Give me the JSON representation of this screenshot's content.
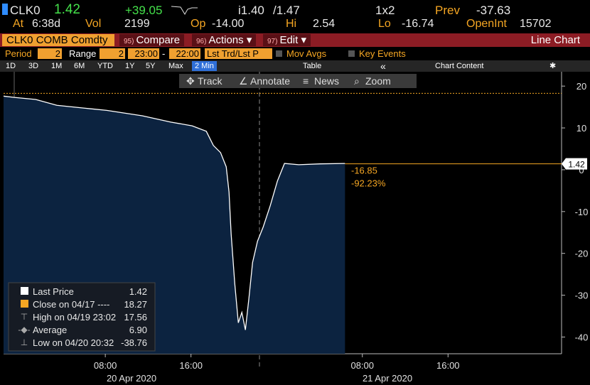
{
  "quote": {
    "ticker": "CLK0",
    "last": "1.42",
    "change": "+39.05",
    "bid": "i1.40",
    "ask": "/1.47",
    "size": "1x2",
    "prev_label": "Prev",
    "prev": "-37.63",
    "at_label": "At",
    "time": "6:38d",
    "vol_label": "Vol",
    "vol": "2199",
    "op_label": "Op",
    "op": "-14.00",
    "hi_label": "Hi",
    "hi": "2.54",
    "lo_label": "Lo",
    "lo": "-16.74",
    "oi_label": "OpenInt",
    "oi": "15702"
  },
  "menu": {
    "security": "CLK0 COMB Comdty",
    "buttons": [
      {
        "num": "95)",
        "label": "Compare"
      },
      {
        "num": "96)",
        "label": "Actions"
      },
      {
        "num": "97)",
        "label": "Edit"
      }
    ],
    "title": "Line Chart"
  },
  "settings": {
    "period_label": "Period",
    "period": "2",
    "range_label": "Range",
    "range": "2",
    "from": "23:00",
    "dash": "-",
    "to": "22:00",
    "mode": "Lst Trd/Lst P",
    "mov": "Mov Avgs",
    "key": "Key Events"
  },
  "ranges": {
    "items": [
      "1D",
      "3D",
      "1M",
      "6M",
      "YTD",
      "1Y",
      "5Y",
      "Max",
      "2 Min"
    ],
    "table": "Table",
    "content": "Chart Content"
  },
  "tools": [
    "Track",
    "Annotate",
    "News",
    "Zoom"
  ],
  "chart_data": {
    "type": "line",
    "color": "#ffffff",
    "fill": "#0c2340",
    "x": [
      -1.5,
      -0.5,
      1.49,
      3.48,
      6.14,
      8.13,
      11.45,
      14.11,
      16.1,
      17.43,
      18.09,
      18.76,
      19.29,
      19.55,
      19.75,
      20.09,
      20.42,
      20.75,
      21.08,
      21.41,
      21.75,
      22.21,
      22.74,
      23.4,
      24.07,
      24.73,
      26.06,
      28.05,
      30.38
    ],
    "values": [
      17.6,
      17.3,
      16.8,
      15.4,
      14.7,
      14.2,
      12.9,
      11.4,
      10.5,
      9.2,
      5.8,
      4.1,
      0.7,
      -5.3,
      -15.4,
      -27.3,
      -36.6,
      -34.1,
      -38.3,
      -30.7,
      -22.2,
      -17.1,
      -13.7,
      -8.6,
      -2.7,
      1.5,
      1.2,
      1.4,
      1.5
    ],
    "xlim": [
      -1.5,
      50.6
    ],
    "ylim": [
      -44,
      23.6
    ],
    "xticks": [
      {
        "value": 8,
        "label": "08:00"
      },
      {
        "value": 16,
        "label": "16:00"
      },
      {
        "value": 32,
        "label": "08:00"
      },
      {
        "value": 40,
        "label": "16:00"
      }
    ],
    "dates": [
      "20 Apr 2020",
      "21 Apr 2020"
    ],
    "yticks": [
      20,
      10,
      0,
      -10,
      -20,
      -30,
      -40
    ],
    "annotations": [
      "-16.85",
      "-92.23%"
    ],
    "legend": [
      {
        "name": "Last Price",
        "value": 1.42
      },
      {
        "name": "Close on 04/17 ----",
        "value": 18.27
      },
      {
        "name": "High on 04/19 23:02",
        "value": 17.56
      },
      {
        "name": "Average",
        "value": 6.9,
        "value_label": "6.90"
      },
      {
        "name": "Low on 04/20 20:32",
        "value": -38.76
      }
    ]
  }
}
